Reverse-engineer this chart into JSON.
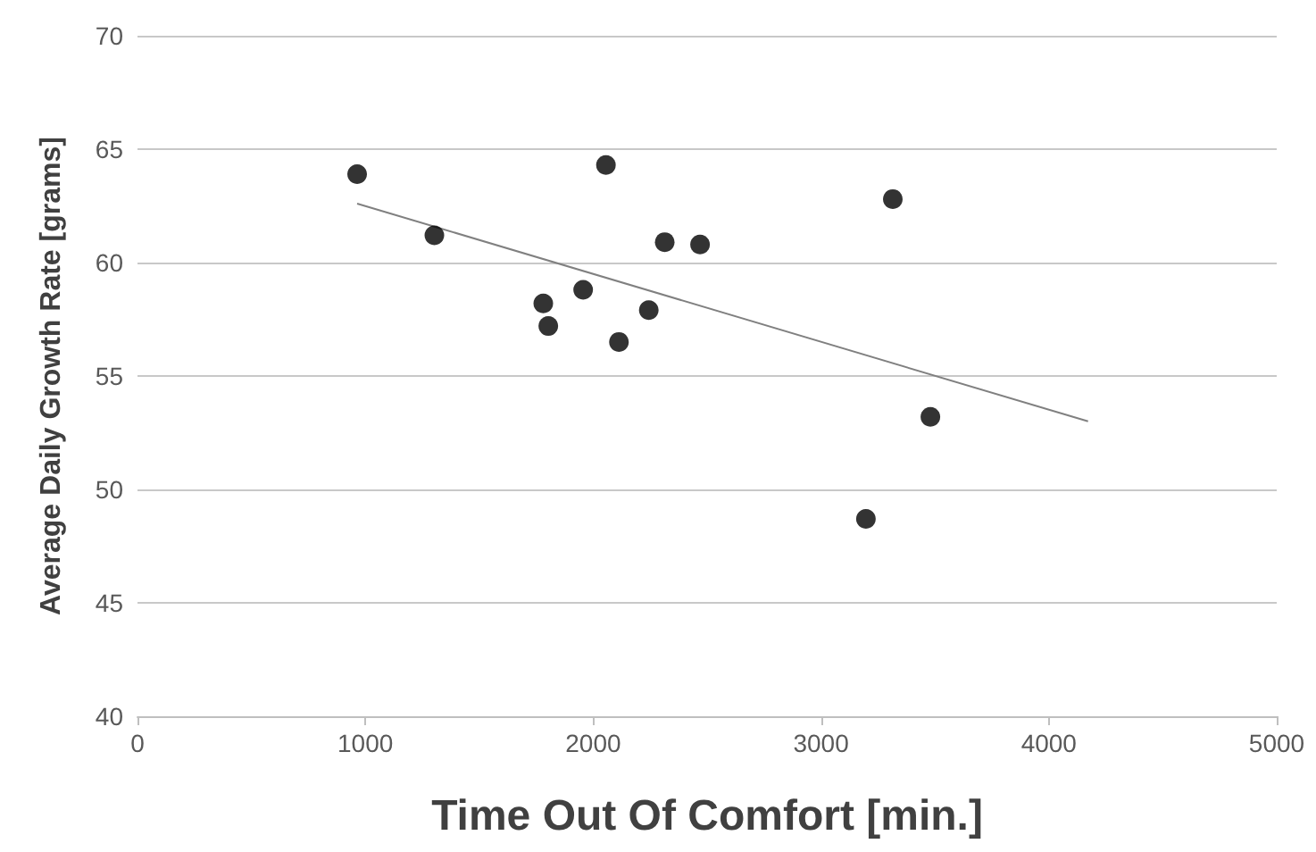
{
  "chart_data": {
    "type": "scatter",
    "xlabel": "Time Out Of Comfort [min.]",
    "ylabel": "Average Daily Growth Rate [grams]",
    "series": [
      {
        "color": "#000000",
        "marker": "circle",
        "x": [
          964,
          1303,
          1781,
          1803,
          1956,
          2056,
          2113,
          2244,
          2314,
          2469,
          3197,
          3315,
          3480
        ],
        "values": [
          63.9,
          61.2,
          58.2,
          57.2,
          58.8,
          64.3,
          56.5,
          57.9,
          60.9,
          60.8,
          48.7,
          62.8,
          53.2
        ]
      },
      {
        "type": "line",
        "color": "#808080",
        "marker": "none",
        "x": [
          964,
          4172
        ],
        "values": [
          62.6,
          53.0
        ]
      }
    ],
    "xlim": [
      0,
      5000
    ],
    "xticks": [
      0,
      1000,
      2000,
      3000,
      4000,
      5000
    ],
    "ylim": [
      40,
      70
    ],
    "yticks": [
      40,
      45,
      50,
      55,
      60,
      65,
      70
    ],
    "grid": "y"
  }
}
